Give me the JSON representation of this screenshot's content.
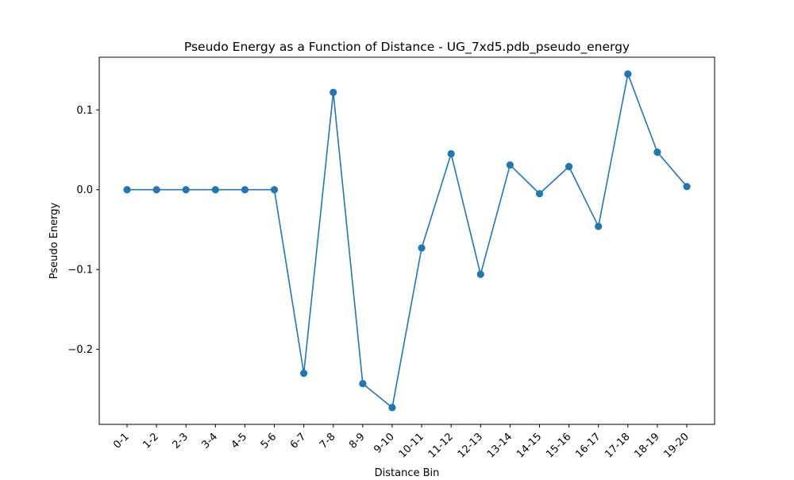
{
  "chart_data": {
    "type": "line",
    "title": "Pseudo Energy as a Function of Distance - UG_7xd5.pdb_pseudo_energy",
    "xlabel": "Distance Bin",
    "ylabel": "Pseudo Energy",
    "categories": [
      "0-1",
      "1-2",
      "2-3",
      "3-4",
      "4-5",
      "5-6",
      "6-7",
      "7-8",
      "8-9",
      "9-10",
      "10-11",
      "11-12",
      "12-13",
      "13-14",
      "14-15",
      "15-16",
      "16-17",
      "17-18",
      "18-19",
      "19-20"
    ],
    "series": [
      {
        "values": [
          0.0,
          0.0,
          0.0,
          0.0,
          0.0,
          0.0,
          -0.23,
          0.122,
          -0.243,
          -0.273,
          -0.073,
          0.045,
          -0.106,
          0.031,
          -0.005,
          0.029,
          -0.046,
          0.145,
          0.047,
          0.004
        ]
      }
    ],
    "yticks": [
      0.1,
      0.0,
      -0.1,
      -0.2
    ],
    "ytick_labels": [
      "0.1",
      "0.0",
      "−0.1",
      "−0.2"
    ],
    "ylim": [
      -0.294,
      0.166
    ],
    "grid": false,
    "legend": "none",
    "colors": {
      "line": "#1f77b4",
      "marker": "#1f77b4",
      "axes": "#000000",
      "background": "#ffffff"
    }
  }
}
